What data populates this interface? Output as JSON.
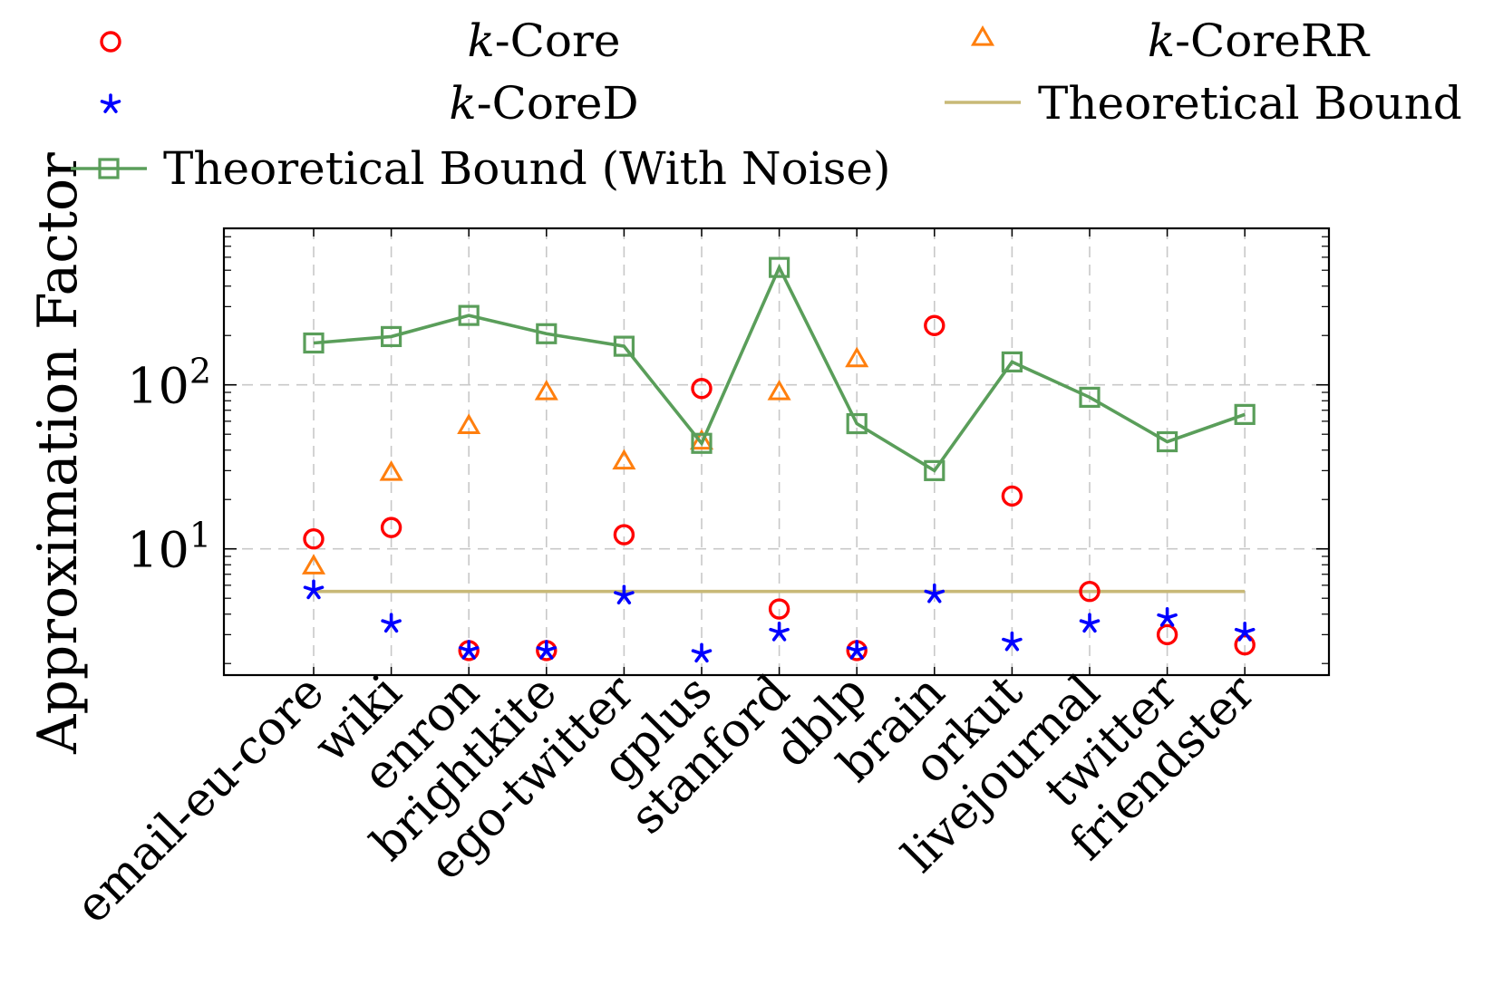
{
  "chart_data": {
    "type": "scatter",
    "title": "",
    "xlabel": "",
    "ylabel": "Approximation Factor",
    "yscale": "log",
    "ylim": [
      1.7,
      900
    ],
    "yticks": [
      {
        "value": 10,
        "base": "10",
        "exp": "1"
      },
      {
        "value": 100,
        "base": "10",
        "exp": "2"
      }
    ],
    "grid": true,
    "legend_position": "top",
    "categories": [
      "email-eu-core",
      "wiki",
      "enron",
      "brightkite",
      "ego-twitter",
      "gplus",
      "stanford",
      "dblp",
      "brain",
      "orkut",
      "livejournal",
      "twitter",
      "friendster"
    ],
    "series": [
      {
        "key": "kcore",
        "prefix": "k",
        "suffix": "-Core",
        "marker": "circle",
        "color": "#ff0000",
        "values": [
          11.5,
          13.5,
          2.4,
          2.4,
          12.2,
          95,
          4.3,
          2.4,
          230,
          21,
          5.5,
          3.0,
          2.6
        ]
      },
      {
        "key": "kcorerr",
        "prefix": "k",
        "suffix": "-CoreRR",
        "marker": "triangle",
        "color": "#ff7f0e",
        "values": [
          7.8,
          29,
          56,
          90,
          34,
          45,
          90,
          143,
          null,
          null,
          null,
          null,
          null
        ]
      },
      {
        "key": "kcored",
        "prefix": "k",
        "suffix": "-CoreD",
        "marker": "star",
        "color": "#0000ff",
        "values": [
          5.6,
          3.5,
          2.4,
          2.4,
          5.2,
          2.3,
          3.1,
          2.4,
          5.3,
          2.7,
          3.5,
          3.8,
          3.1
        ]
      },
      {
        "key": "bound",
        "prefix": "",
        "suffix": "Theoretical Bound",
        "marker": "line",
        "color": "#c8b977",
        "values": [
          5.5,
          5.5,
          5.5,
          5.5,
          5.5,
          5.5,
          5.5,
          5.5,
          5.5,
          5.5,
          5.5,
          5.5,
          5.5
        ]
      },
      {
        "key": "bound_noise",
        "prefix": "",
        "suffix": "Theoretical Bound (With Noise)",
        "marker": "square-line",
        "color": "#5a9e5a",
        "values": [
          180,
          197,
          265,
          205,
          172,
          44,
          520,
          58,
          30,
          138,
          84,
          45,
          66
        ]
      }
    ]
  }
}
